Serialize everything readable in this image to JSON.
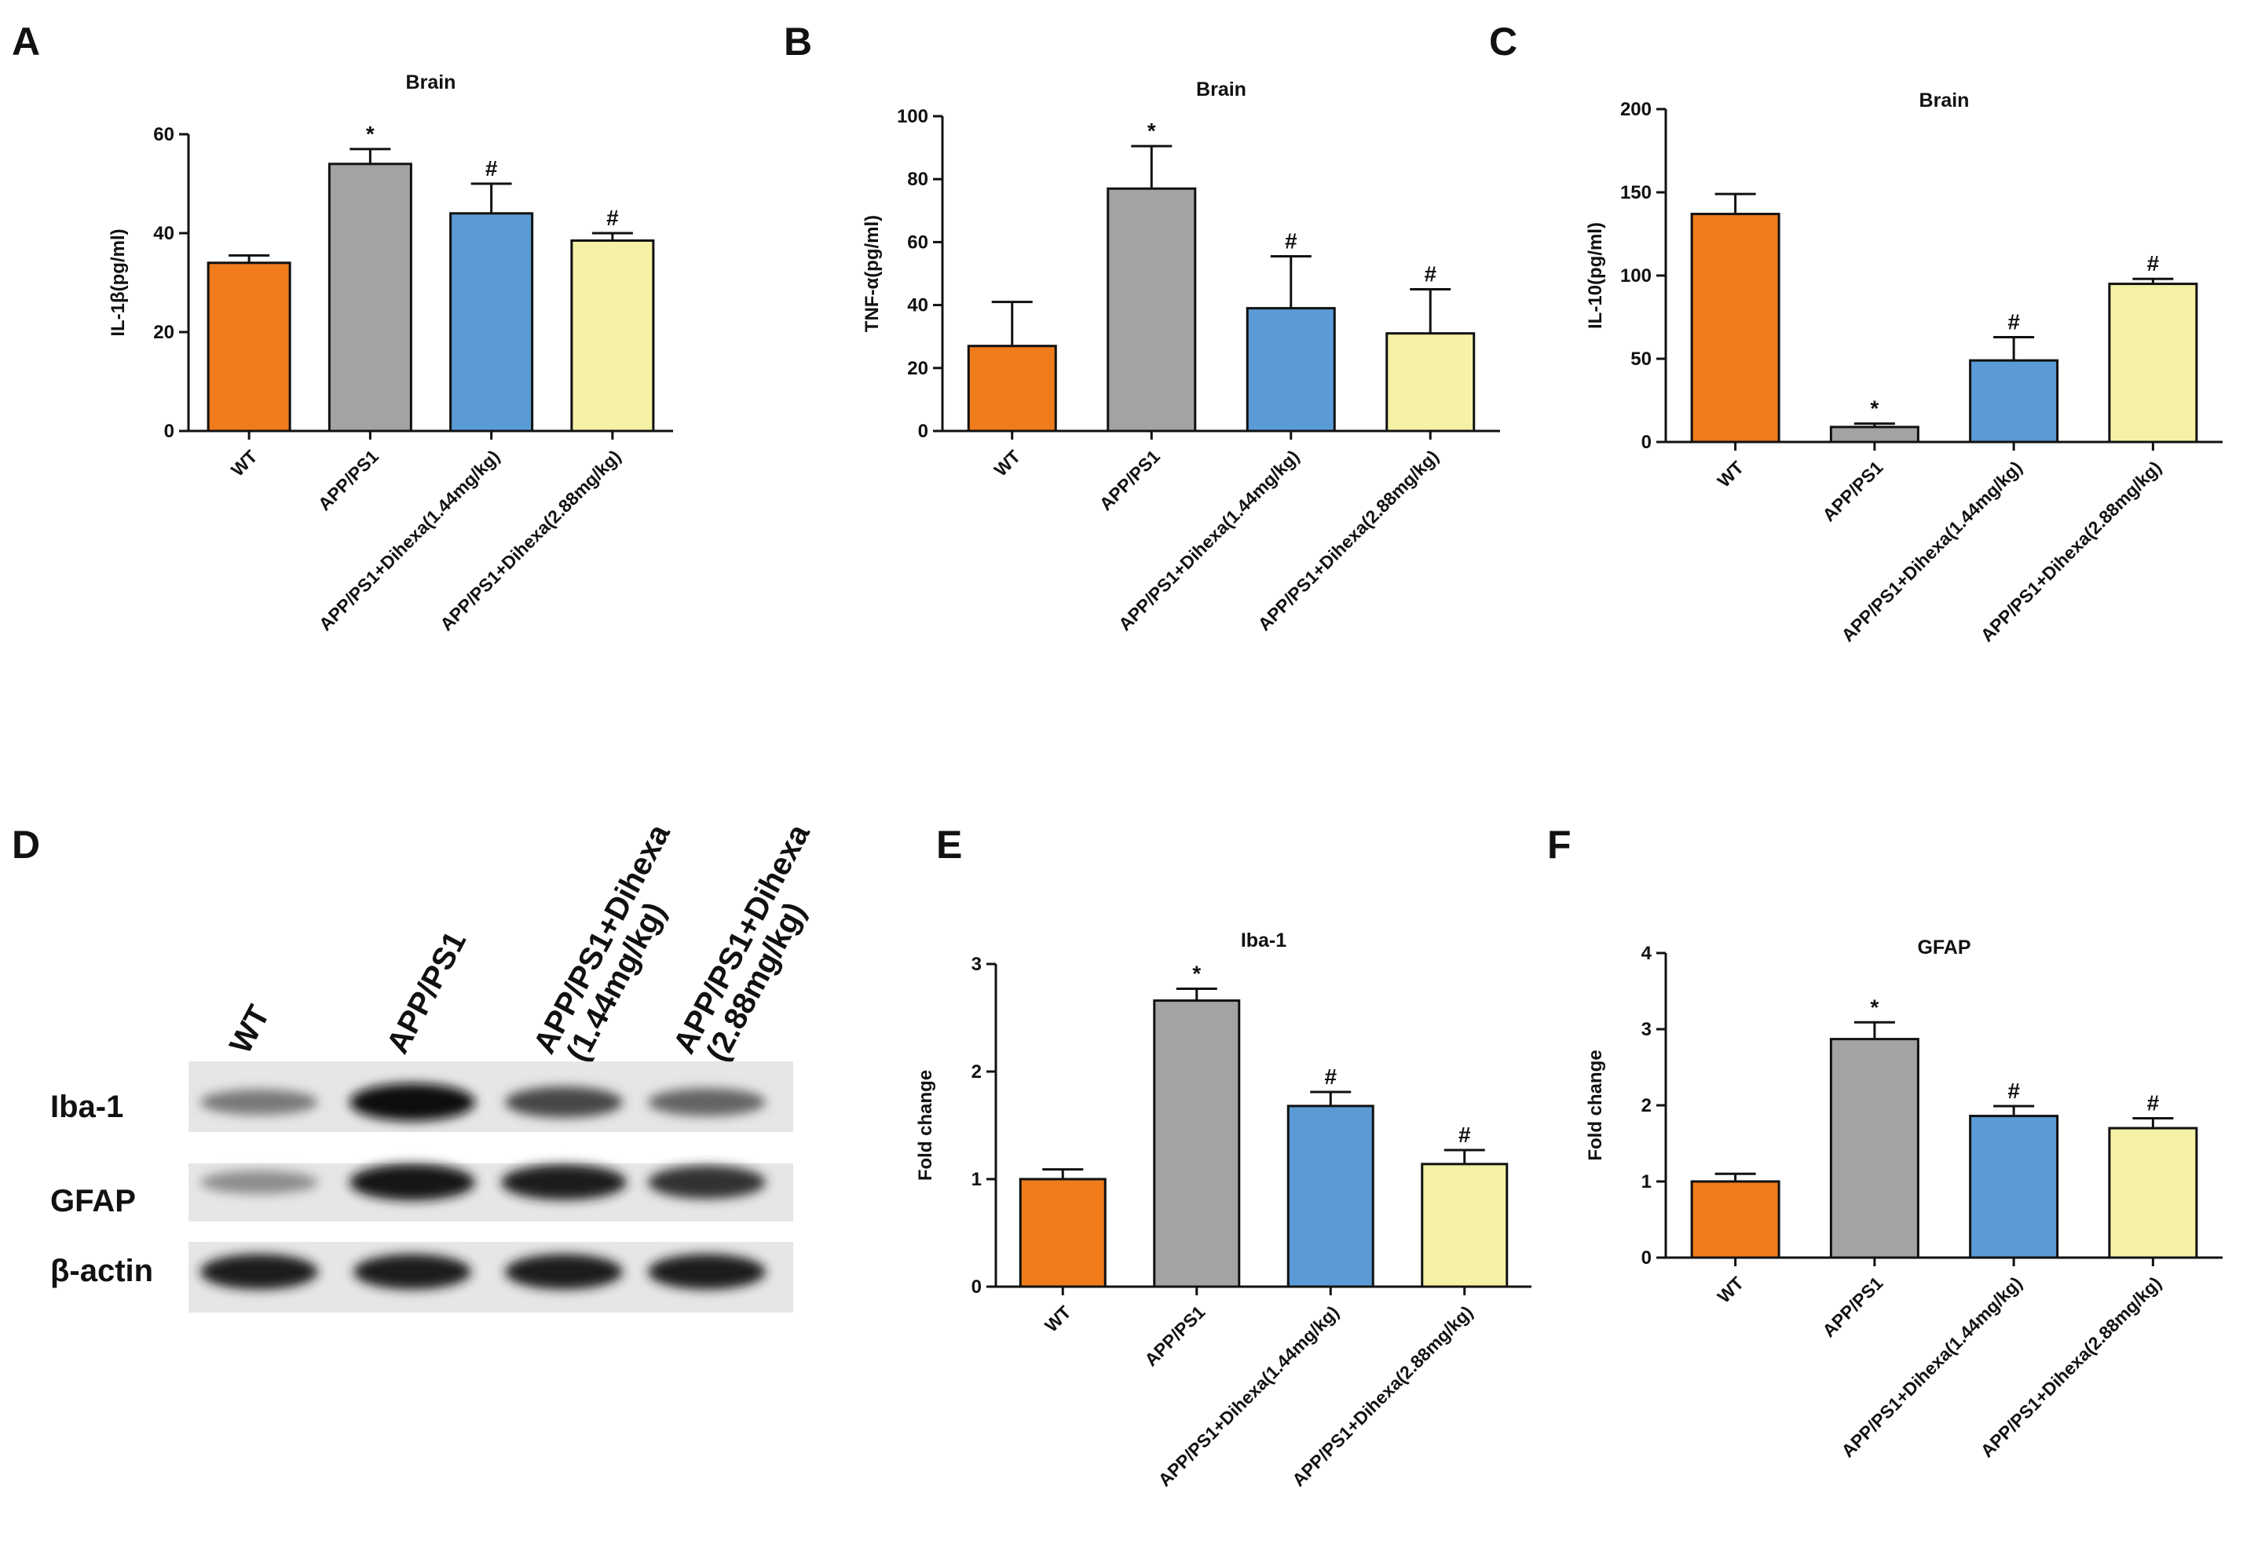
{
  "colors": {
    "wt": "#ef7b1b",
    "app": "#a3a3a6",
    "low": "#5b9bd5",
    "high": "#f5f1a5",
    "stroke": "#111111"
  },
  "chart_data": [
    {
      "panel": "A",
      "type": "bar",
      "title": "Brain",
      "ylabel": "IL-1β(pg/ml)",
      "ylim": [
        0,
        60
      ],
      "yticks": [
        0,
        20,
        40,
        60
      ],
      "categories": [
        "WT",
        "APP/PS1",
        "APP/PS1+Dihexa(1.44mg/kg)",
        "APP/PS1+Dihexa(2.88mg/kg)"
      ],
      "values": [
        34,
        54,
        44,
        38.5
      ],
      "errors": [
        1.5,
        3,
        6,
        1.5
      ],
      "annotations": [
        "",
        "*",
        "#",
        "#"
      ]
    },
    {
      "panel": "B",
      "type": "bar",
      "title": "Brain",
      "ylabel": "TNF-α(pg/ml)",
      "ylim": [
        0,
        100
      ],
      "yticks": [
        0,
        20,
        40,
        60,
        80,
        100
      ],
      "categories": [
        "WT",
        "APP/PS1",
        "APP/PS1+Dihexa(1.44mg/kg)",
        "APP/PS1+Dihexa(2.88mg/kg)"
      ],
      "values": [
        27,
        77,
        39,
        31
      ],
      "errors": [
        14,
        13.5,
        16.5,
        14
      ],
      "annotations": [
        "",
        "*",
        "#",
        "#"
      ]
    },
    {
      "panel": "C",
      "type": "bar",
      "title": "Brain",
      "ylabel": "IL-10(pg/ml)",
      "ylim": [
        0,
        200
      ],
      "yticks": [
        0,
        50,
        100,
        150,
        200
      ],
      "categories": [
        "WT",
        "APP/PS1",
        "APP/PS1+Dihexa(1.44mg/kg)",
        "APP/PS1+Dihexa(2.88mg/kg)"
      ],
      "values": [
        137,
        9,
        49,
        95
      ],
      "errors": [
        12,
        2,
        14,
        3
      ],
      "annotations": [
        "",
        "*",
        "#",
        "#"
      ]
    },
    {
      "panel": "E",
      "type": "bar",
      "title": "Iba-1",
      "ylabel": "Fold change",
      "ylim": [
        0,
        3
      ],
      "yticks": [
        0,
        1,
        2,
        3
      ],
      "categories": [
        "WT",
        "APP/PS1",
        "APP/PS1+Dihexa(1.44mg/kg)",
        "APP/PS1+Dihexa(2.88mg/kg)"
      ],
      "values": [
        1,
        2.66,
        1.68,
        1.14
      ],
      "errors": [
        0.09,
        0.11,
        0.13,
        0.13
      ],
      "annotations": [
        "",
        "*",
        "#",
        "#"
      ]
    },
    {
      "panel": "F",
      "type": "bar",
      "title": "GFAP",
      "ylabel": "Fold change",
      "ylim": [
        0,
        4
      ],
      "yticks": [
        0,
        1,
        2,
        3,
        4
      ],
      "categories": [
        "WT",
        "APP/PS1",
        "APP/PS1+Dihexa(1.44mg/kg)",
        "APP/PS1+Dihexa(2.88mg/kg)"
      ],
      "values": [
        1,
        2.87,
        1.86,
        1.7
      ],
      "errors": [
        0.1,
        0.22,
        0.13,
        0.13
      ],
      "annotations": [
        "",
        "*",
        "#",
        "#"
      ]
    }
  ],
  "western_blot": {
    "panel": "D",
    "lanes": [
      {
        "label": "WT",
        "label2": ""
      },
      {
        "label": "APP/PS1",
        "label2": ""
      },
      {
        "label": "APP/PS1+Dihexa",
        "label2": "(1.44mg/kg)"
      },
      {
        "label": "APP/PS1+Dihexa",
        "label2": "(2.88mg/kg)"
      }
    ],
    "rows": [
      {
        "label": "Iba-1",
        "intensity": [
          0.45,
          1.0,
          0.7,
          0.55
        ]
      },
      {
        "label": "GFAP",
        "intensity": [
          0.35,
          0.95,
          0.9,
          0.8
        ]
      },
      {
        "label": "β-actin",
        "intensity": [
          0.9,
          0.9,
          0.9,
          0.9
        ]
      }
    ]
  }
}
